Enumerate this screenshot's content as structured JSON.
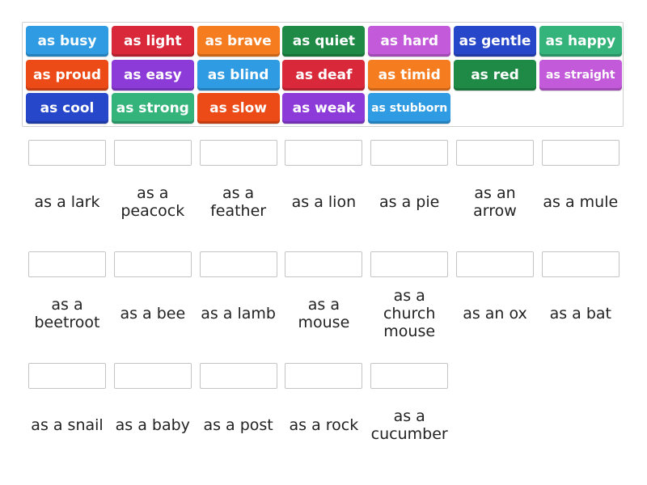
{
  "word_bank": {
    "tiles": [
      {
        "label": "as busy",
        "color": "#2e9be3"
      },
      {
        "label": "as light",
        "color": "#d8283a"
      },
      {
        "label": "as brave",
        "color": "#f57c1f"
      },
      {
        "label": "as quiet",
        "color": "#1e8a45"
      },
      {
        "label": "as hard",
        "color": "#c25ad9"
      },
      {
        "label": "as gentle",
        "color": "#2647c9"
      },
      {
        "label": "as happy",
        "color": "#34b37a"
      },
      {
        "label": "as proud",
        "color": "#ec4a16"
      },
      {
        "label": "as easy",
        "color": "#8c3bd9"
      },
      {
        "label": "as blind",
        "color": "#2e9be3"
      },
      {
        "label": "as deaf",
        "color": "#d8283a"
      },
      {
        "label": "as timid",
        "color": "#f57c1f"
      },
      {
        "label": "as red",
        "color": "#1e8a45"
      },
      {
        "label": "as straight",
        "color": "#c25ad9"
      },
      {
        "label": "as cool",
        "color": "#2647c9"
      },
      {
        "label": "as strong",
        "color": "#34b37a"
      },
      {
        "label": "as slow",
        "color": "#ec4a16"
      },
      {
        "label": "as weak",
        "color": "#8c3bd9"
      },
      {
        "label": "as stubborn",
        "color": "#2e9be3"
      }
    ]
  },
  "targets": [
    {
      "label": "as a lark"
    },
    {
      "label": "as a peacock"
    },
    {
      "label": "as a feather"
    },
    {
      "label": "as a lion"
    },
    {
      "label": "as a pie"
    },
    {
      "label": "as an arrow"
    },
    {
      "label": "as a mule"
    },
    {
      "label": "as a beetroot"
    },
    {
      "label": "as a bee"
    },
    {
      "label": "as a lamb"
    },
    {
      "label": "as a mouse"
    },
    {
      "label": "as a church mouse"
    },
    {
      "label": "as an ox"
    },
    {
      "label": "as a bat"
    },
    {
      "label": "as a snail"
    },
    {
      "label": "as a baby"
    },
    {
      "label": "as a post"
    },
    {
      "label": "as a rock"
    },
    {
      "label": "as a cucumber"
    }
  ]
}
